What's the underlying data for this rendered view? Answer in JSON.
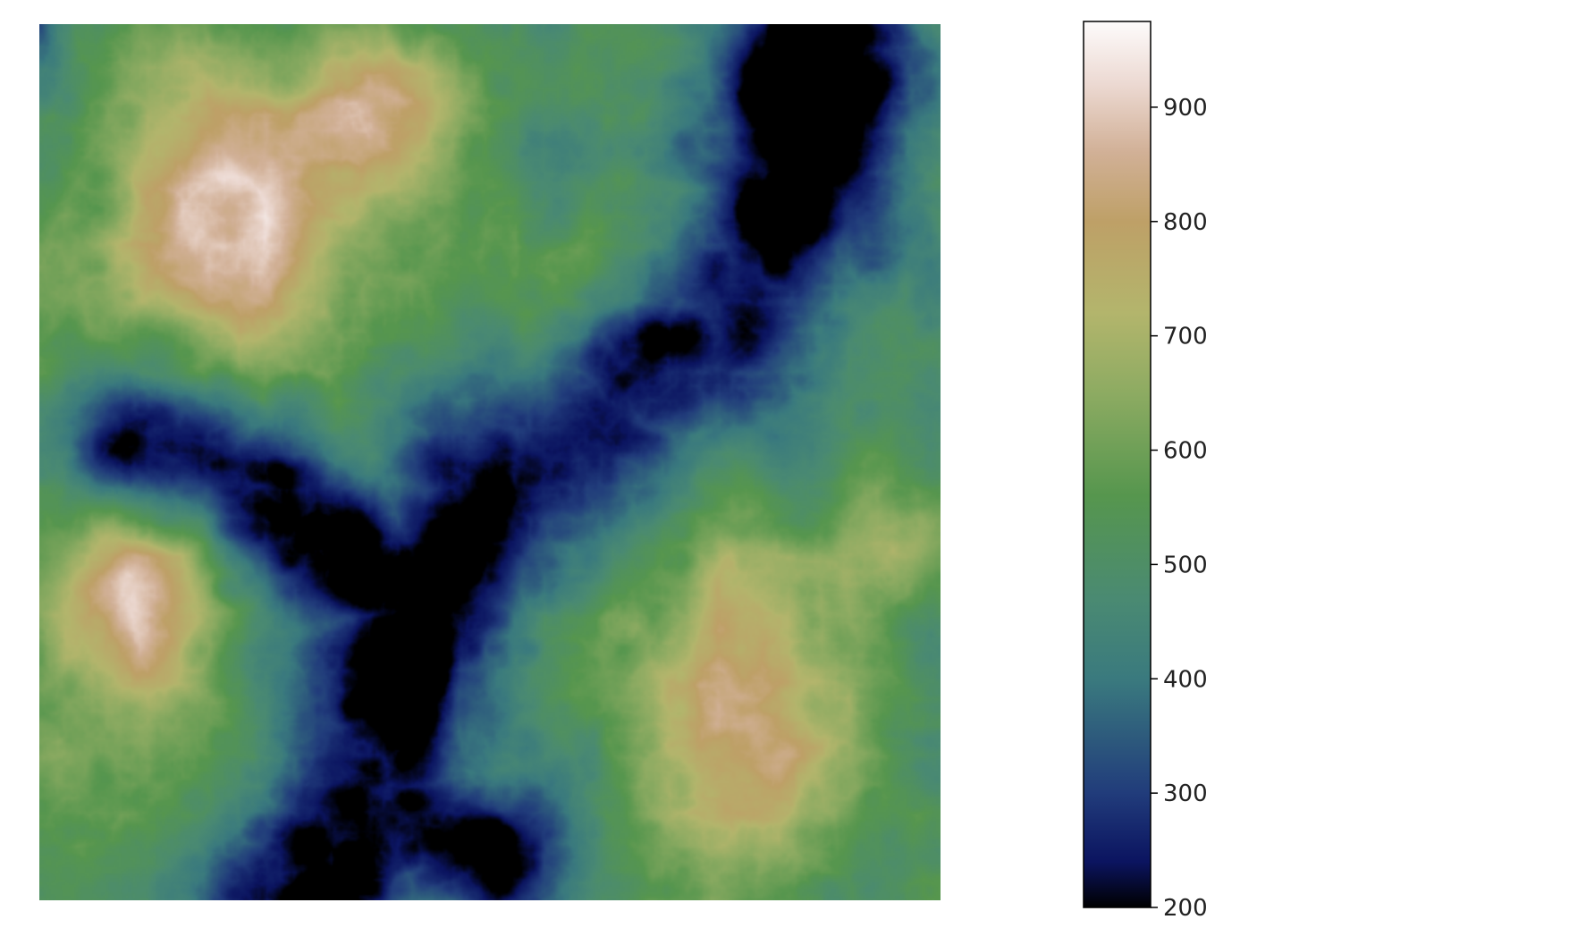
{
  "chart_data": {
    "type": "heatmap",
    "title": "",
    "xlabel": "",
    "ylabel": "",
    "axes_visible": false,
    "colormap": "gist_earth",
    "colorbar": {
      "placement": "right",
      "vmin": 200,
      "vmax": 975,
      "ticks": [
        200,
        300,
        400,
        500,
        600,
        700,
        800,
        900
      ],
      "tick_labels": [
        "200",
        "300",
        "400",
        "500",
        "600",
        "700",
        "800",
        "900"
      ],
      "color_stops": [
        {
          "value": 200,
          "color": "#000000"
        },
        {
          "value": 240,
          "color": "#0b1460"
        },
        {
          "value": 300,
          "color": "#213c7b"
        },
        {
          "value": 400,
          "color": "#3a7a7e"
        },
        {
          "value": 470,
          "color": "#4a8a72"
        },
        {
          "value": 560,
          "color": "#56964e"
        },
        {
          "value": 650,
          "color": "#8dab62"
        },
        {
          "value": 720,
          "color": "#b3b56c"
        },
        {
          "value": 800,
          "color": "#bea067"
        },
        {
          "value": 860,
          "color": "#d1b096"
        },
        {
          "value": 920,
          "color": "#ecd9d2"
        },
        {
          "value": 975,
          "color": "#fdfbfb"
        }
      ]
    }
  }
}
